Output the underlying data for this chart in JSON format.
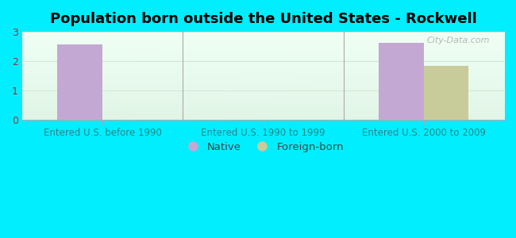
{
  "title": "Population born outside the United States - Rockwell",
  "categories": [
    "Entered U.S. before 1990",
    "Entered U.S. 1990 to 1999",
    "Entered U.S. 2000 to 2009"
  ],
  "native_values": [
    2.58,
    0,
    2.62
  ],
  "foreign_values": [
    0,
    0,
    1.85
  ],
  "native_color": "#c4a8d4",
  "foreign_color": "#c8cc9a",
  "ylim": [
    0,
    3
  ],
  "yticks": [
    0,
    1,
    2,
    3
  ],
  "bar_width": 0.28,
  "figure_bg": "#00eeff",
  "plot_bg_color": "#e8f5ea",
  "grid_color": "#d4e8d4",
  "title_fontsize": 13,
  "axis_label_fontsize": 8.5,
  "tick_fontsize": 9,
  "tick_color_y": "#993333",
  "tick_color_x": "#228888",
  "legend_labels": [
    "Native",
    "Foreign-born"
  ],
  "watermark": "City-Data.com"
}
